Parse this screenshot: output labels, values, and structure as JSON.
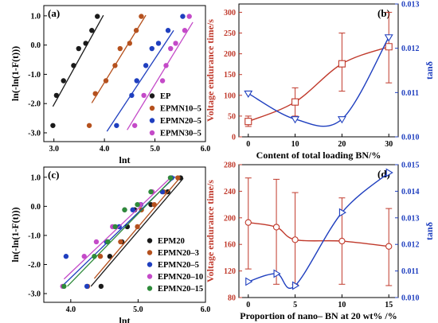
{
  "chart_data": [
    {
      "type": "scatter",
      "panel_label": "(a)",
      "xlabel": "lnt",
      "ylabel": "ln(-ln(1-F(t)))",
      "xlim": [
        2.8,
        6.0
      ],
      "ylim": [
        -3.3,
        1.35
      ],
      "xticks": [
        "3.0",
        "4.0",
        "5.0",
        "6.0"
      ],
      "yticks": [
        "-3.0",
        "-2.0",
        "-1.0",
        "0.0",
        "1.0"
      ],
      "legend_position": "bottom-right",
      "series": [
        {
          "name": "EP",
          "color": "#1a1a1a",
          "points": [
            [
              2.98,
              -2.75
            ],
            [
              3.05,
              -1.72
            ],
            [
              3.19,
              -1.22
            ],
            [
              3.39,
              -0.7
            ],
            [
              3.49,
              -0.12
            ],
            [
              3.63,
              0.06
            ],
            [
              3.75,
              0.5
            ],
            [
              3.86,
              0.98
            ]
          ],
          "fit": [
            [
              2.98,
              -2.1
            ],
            [
              3.98,
              1.02
            ]
          ]
        },
        {
          "name": "EPMN10–5",
          "color": "#b5511e",
          "points": [
            [
              3.7,
              -2.75
            ],
            [
              3.82,
              -1.66
            ],
            [
              4.03,
              -1.22
            ],
            [
              4.21,
              -0.7
            ],
            [
              4.31,
              -0.12
            ],
            [
              4.5,
              0.06
            ],
            [
              4.63,
              0.5
            ],
            [
              4.73,
              0.98
            ]
          ],
          "fit": [
            [
              3.75,
              -1.98
            ],
            [
              4.82,
              1.02
            ]
          ]
        },
        {
          "name": "EPMN20–5",
          "color": "#1f3fbf",
          "points": [
            [
              4.24,
              -2.75
            ],
            [
              4.54,
              -1.72
            ],
            [
              4.64,
              -1.22
            ],
            [
              4.82,
              -0.7
            ],
            [
              4.94,
              -0.12
            ],
            [
              5.07,
              0.06
            ],
            [
              5.26,
              0.5
            ],
            [
              5.55,
              0.98
            ]
          ],
          "fit": [
            [
              4.05,
              -2.95
            ],
            [
              5.37,
              0.5
            ]
          ]
        },
        {
          "name": "EPMN30–5",
          "color": "#c44ac8",
          "points": [
            [
              4.6,
              -2.75
            ],
            [
              4.78,
              -1.72
            ],
            [
              5.15,
              -1.22
            ],
            [
              5.22,
              -0.7
            ],
            [
              5.31,
              -0.12
            ],
            [
              5.41,
              0.06
            ],
            [
              5.59,
              0.5
            ],
            [
              5.68,
              0.98
            ]
          ],
          "fit": [
            [
              4.45,
              -2.9
            ],
            [
              5.75,
              0.78
            ]
          ]
        }
      ]
    },
    {
      "type": "line",
      "panel_label": "(b)",
      "xlabel": "Content of total loading BN/%",
      "ylabel_left": "Voltage endurance time/s",
      "ylabel_right": "tanδ",
      "xlim": [
        -2,
        32
      ],
      "ylim_left": [
        0,
        320
      ],
      "ylim_right": [
        0.01,
        0.013
      ],
      "xticks": [
        "0",
        "10",
        "20",
        "30"
      ],
      "yticks_left": [
        "0",
        "50",
        "100",
        "150",
        "200",
        "250",
        "300"
      ],
      "yticks_right": [
        "0.010",
        "0.011",
        "0.012",
        "0.013"
      ],
      "left_color": "#c0392b",
      "right_color": "#1f3fbf",
      "series": [
        {
          "name": "",
          "axis": "left",
          "color": "#c0392b",
          "marker": "square",
          "x": [
            0,
            10,
            20,
            30
          ],
          "y": [
            37,
            84,
            176,
            217
          ],
          "err_low": [
            25,
            50,
            110,
            130
          ],
          "err_high": [
            50,
            118,
            250,
            300
          ]
        },
        {
          "name": "",
          "axis": "right",
          "color": "#1f3fbf",
          "marker": "triangle-down",
          "x": [
            0,
            10,
            20,
            30
          ],
          "y": [
            0.01098,
            0.0104,
            0.0104,
            0.01225
          ]
        }
      ]
    },
    {
      "type": "scatter",
      "panel_label": "(c)",
      "xlabel": "lnt",
      "ylabel": "ln(-ln(1-F(t)))",
      "xlim": [
        3.6,
        6.0
      ],
      "ylim": [
        -3.3,
        1.35
      ],
      "xticks": [
        "4.0",
        "5.0",
        "6.0"
      ],
      "yticks": [
        "-3.0",
        "-2.0",
        "-1.0",
        "0.0",
        "1.0"
      ],
      "legend_position": "bottom-right",
      "series": [
        {
          "name": "EPM20",
          "color": "#1a1a1a",
          "points": [
            [
              4.45,
              -2.75
            ],
            [
              4.58,
              -1.72
            ],
            [
              4.76,
              -1.22
            ],
            [
              4.84,
              -0.7
            ],
            [
              4.95,
              -0.12
            ],
            [
              5.19,
              0.06
            ],
            [
              5.44,
              0.5
            ],
            [
              5.63,
              0.98
            ]
          ],
          "fit": [
            [
              4.3,
              -2.75
            ],
            [
              5.67,
              0.96
            ]
          ]
        },
        {
          "name": "EPMN20–3",
          "color": "#b5511e",
          "points": [
            [
              4.25,
              -2.75
            ],
            [
              4.44,
              -1.72
            ],
            [
              4.74,
              -1.22
            ],
            [
              4.99,
              -0.7
            ],
            [
              5.05,
              -0.12
            ],
            [
              5.24,
              0.06
            ],
            [
              5.38,
              0.5
            ],
            [
              5.59,
              0.98
            ]
          ],
          "fit": [
            [
              4.35,
              -2.48
            ],
            [
              5.62,
              0.98
            ]
          ]
        },
        {
          "name": "EPMN20–5",
          "color": "#1f3fbf",
          "points": [
            [
              3.93,
              -1.72
            ],
            [
              4.24,
              -2.75
            ],
            [
              4.53,
              -1.22
            ],
            [
              4.72,
              -0.7
            ],
            [
              4.92,
              -0.12
            ],
            [
              5.04,
              0.06
            ],
            [
              5.36,
              0.5
            ],
            [
              5.5,
              0.98
            ]
          ],
          "fit": [
            [
              3.87,
              -2.75
            ],
            [
              5.55,
              1.02
            ]
          ]
        },
        {
          "name": "EPMN20–10",
          "color": "#c44ac8",
          "points": [
            [
              3.88,
              -2.75
            ],
            [
              4.2,
              -1.72
            ],
            [
              4.38,
              -1.22
            ],
            [
              4.62,
              -0.7
            ],
            [
              4.8,
              -0.12
            ],
            [
              5.03,
              0.06
            ],
            [
              5.21,
              0.5
            ],
            [
              5.48,
              0.98
            ]
          ],
          "fit": [
            [
              3.9,
              -2.5
            ],
            [
              5.48,
              0.98
            ]
          ]
        },
        {
          "name": "EPMN20–15",
          "color": "#2e8b3a",
          "points": [
            [
              3.9,
              -2.75
            ],
            [
              4.35,
              -1.72
            ],
            [
              4.55,
              -1.22
            ],
            [
              4.66,
              -0.7
            ],
            [
              4.8,
              -0.12
            ],
            [
              4.99,
              0.06
            ],
            [
              5.19,
              0.5
            ],
            [
              5.48,
              0.98
            ]
          ],
          "fit": [
            [
              3.95,
              -2.75
            ],
            [
              5.52,
              0.98
            ]
          ]
        }
      ]
    },
    {
      "type": "line",
      "panel_label": "(d)",
      "xlabel": "Proportion of nano– BN at 20 wt% /%",
      "ylabel_left": "Voltage endurance time/s",
      "ylabel_right": "tanδ",
      "xlim": [
        -1,
        16
      ],
      "ylim_left": [
        80,
        280
      ],
      "ylim_right": [
        0.01,
        0.015
      ],
      "xticks": [
        "0",
        "5",
        "10",
        "15"
      ],
      "yticks_left": [
        "80",
        "120",
        "160",
        "200",
        "240",
        "280"
      ],
      "yticks_right": [
        "0.010",
        "0.011",
        "0.012",
        "0.013",
        "0.014",
        "0.015"
      ],
      "left_color": "#c0392b",
      "right_color": "#1f3fbf",
      "series": [
        {
          "name": "",
          "axis": "left",
          "color": "#c0392b",
          "marker": "circle",
          "x": [
            0,
            3,
            5,
            10,
            15
          ],
          "y": [
            193,
            186,
            167,
            165,
            157
          ],
          "err_low": [
            123,
            100,
            100,
            100,
            98
          ],
          "err_high": [
            260,
            258,
            238,
            230,
            214
          ]
        },
        {
          "name": "",
          "axis": "right",
          "color": "#1f3fbf",
          "marker": "triangle-right",
          "x": [
            0,
            3,
            5,
            10,
            15
          ],
          "y": [
            0.0106,
            0.0109,
            0.01045,
            0.0132,
            0.0147
          ]
        }
      ]
    }
  ]
}
